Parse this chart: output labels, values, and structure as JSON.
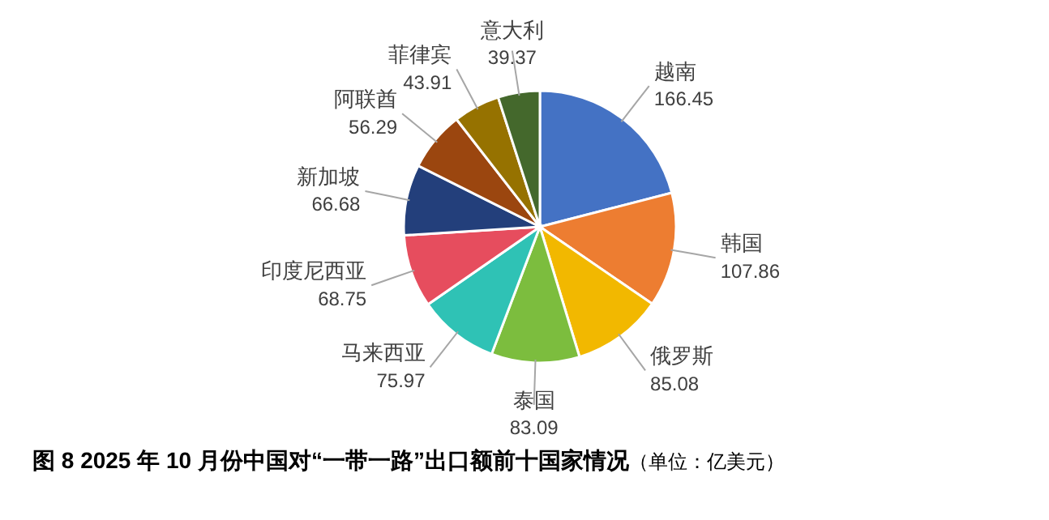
{
  "chart_data": {
    "type": "pie",
    "title": "图 8  2025 年 10 月份中国对“一带一路”出口额前十国家情况",
    "subtitle": "（单位：亿美元）",
    "data_labels": true,
    "categories": [
      "越南",
      "韩国",
      "俄罗斯",
      "泰国",
      "马来西亚",
      "印度尼西亚",
      "新加坡",
      "阿联酋",
      "菲律宾",
      "意大利"
    ],
    "values": [
      166.45,
      107.86,
      85.08,
      83.09,
      75.97,
      68.75,
      66.68,
      56.29,
      43.91,
      39.37
    ],
    "colors": [
      "#4472c4",
      "#ed7d31",
      "#f2b800",
      "#7cbd3e",
      "#2fc2b5",
      "#e64d5e",
      "#233f7b",
      "#9b460f",
      "#967200",
      "#44682c"
    ]
  }
}
